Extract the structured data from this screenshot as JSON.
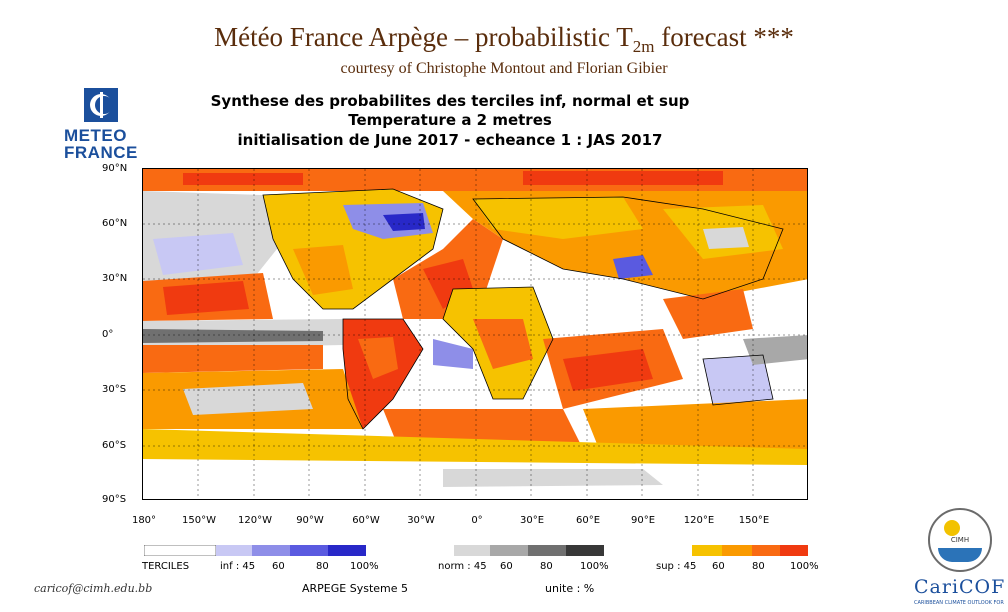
{
  "slide": {
    "title_main": "Météo France Arpège – probabilistic T",
    "title_sub": "2m",
    "title_tail": " forecast ***",
    "credit": "courtesy of Christophe Montout and Florian Gibier"
  },
  "logos": {
    "meteo_france_line1": "METEO",
    "meteo_france_line2": "FRANCE",
    "cimh_text": "CIMH",
    "caricof_name": "CariCOF",
    "caricof_tagline": "CARIBBEAN CLIMATE OUTLOOK FORUM"
  },
  "map": {
    "title_lines": [
      "Synthese des probabilites des terciles inf, normal et sup",
      "Temperature a 2 metres",
      "initialisation de June 2017  -  echeance 1 : JAS 2017"
    ],
    "lat_labels": [
      "90°N",
      "60°N",
      "30°N",
      "0°",
      "30°S",
      "60°S",
      "90°S"
    ],
    "lon_labels": [
      "180°",
      "150°W",
      "120°W",
      "90°W",
      "60°W",
      "30°W",
      "0°",
      "30°E",
      "60°E",
      "90°E",
      "120°E",
      "150°E"
    ],
    "colors": {
      "sup": [
        "#f6c200",
        "#fa9a00",
        "#f96a12",
        "#f03a10"
      ],
      "inf": [
        "#c8c8f4",
        "#8e8ee8",
        "#5a5ae0",
        "#2828c8"
      ],
      "norm": [
        "#d8d8d8",
        "#a8a8a8",
        "#707070",
        "#383838"
      ],
      "land_outline": "#000000"
    }
  },
  "legend": {
    "heading": "TERCILES",
    "inf_labels": [
      "inf : 45",
      "60",
      "80",
      "100%"
    ],
    "norm_labels": [
      "norm : 45",
      "60",
      "80",
      "100%"
    ],
    "sup_labels": [
      "sup : 45",
      "60",
      "80",
      "100%"
    ]
  },
  "footer": {
    "email": "caricof@cimh.edu.bb",
    "system": "ARPEGE Systeme 5",
    "unit": "unite : %"
  }
}
